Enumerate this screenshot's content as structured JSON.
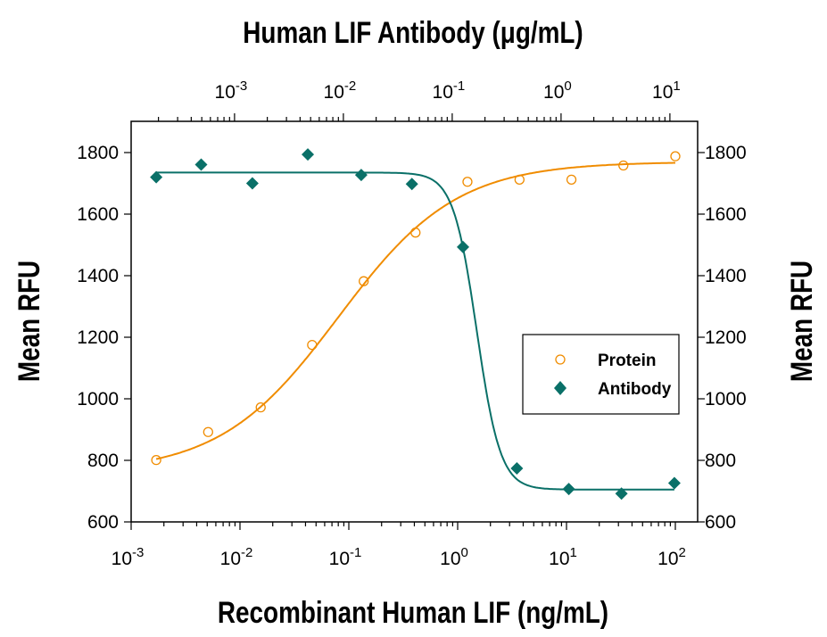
{
  "chart_data": {
    "type": "scatter",
    "xlabel": "Recombinant Human LIF (ng/mL)",
    "x2label": "Human LIF Antibody (μg/mL)",
    "ylabel": "Mean RFU",
    "y2label": "Mean RFU",
    "xscale": "log",
    "xlim": [
      0.001,
      170
    ],
    "x_ticks": [
      "-3",
      "-2",
      "-1",
      "0",
      "1",
      "2"
    ],
    "x2_ticks": [
      "-3",
      "-2",
      "-1",
      "0",
      "1"
    ],
    "ylim": [
      600,
      1900
    ],
    "y_ticks": [
      600,
      800,
      1000,
      1200,
      1400,
      1600,
      1800
    ],
    "grid": false,
    "legend": "center-right",
    "series": [
      {
        "name": "Protein",
        "marker": "open-circle",
        "color": "#F08C00",
        "x": [
          0.0017,
          0.0051,
          0.0155,
          0.046,
          0.137,
          0.41,
          1.23,
          3.7,
          11.1,
          33.3,
          100
        ],
        "y": [
          801,
          892,
          972,
          1175,
          1382,
          1540,
          1705,
          1712,
          1712,
          1758,
          1788
        ],
        "fit": {
          "bottom": 760,
          "top": 1770,
          "ec50": 0.08,
          "hill": 0.8
        }
      },
      {
        "name": "Antibody",
        "marker": "filled-diamond",
        "color": "#0A7068",
        "x": [
          0.0017,
          0.0044,
          0.013,
          0.042,
          0.13,
          0.38,
          1.12,
          3.5,
          10.5,
          32,
          98
        ],
        "y": [
          1720,
          1761,
          1700,
          1794,
          1727,
          1698,
          1493,
          774,
          707,
          692,
          726
        ],
        "fit": {
          "bottom": 705,
          "top": 1735,
          "ec50": 1.5,
          "hill": -4
        }
      }
    ]
  }
}
